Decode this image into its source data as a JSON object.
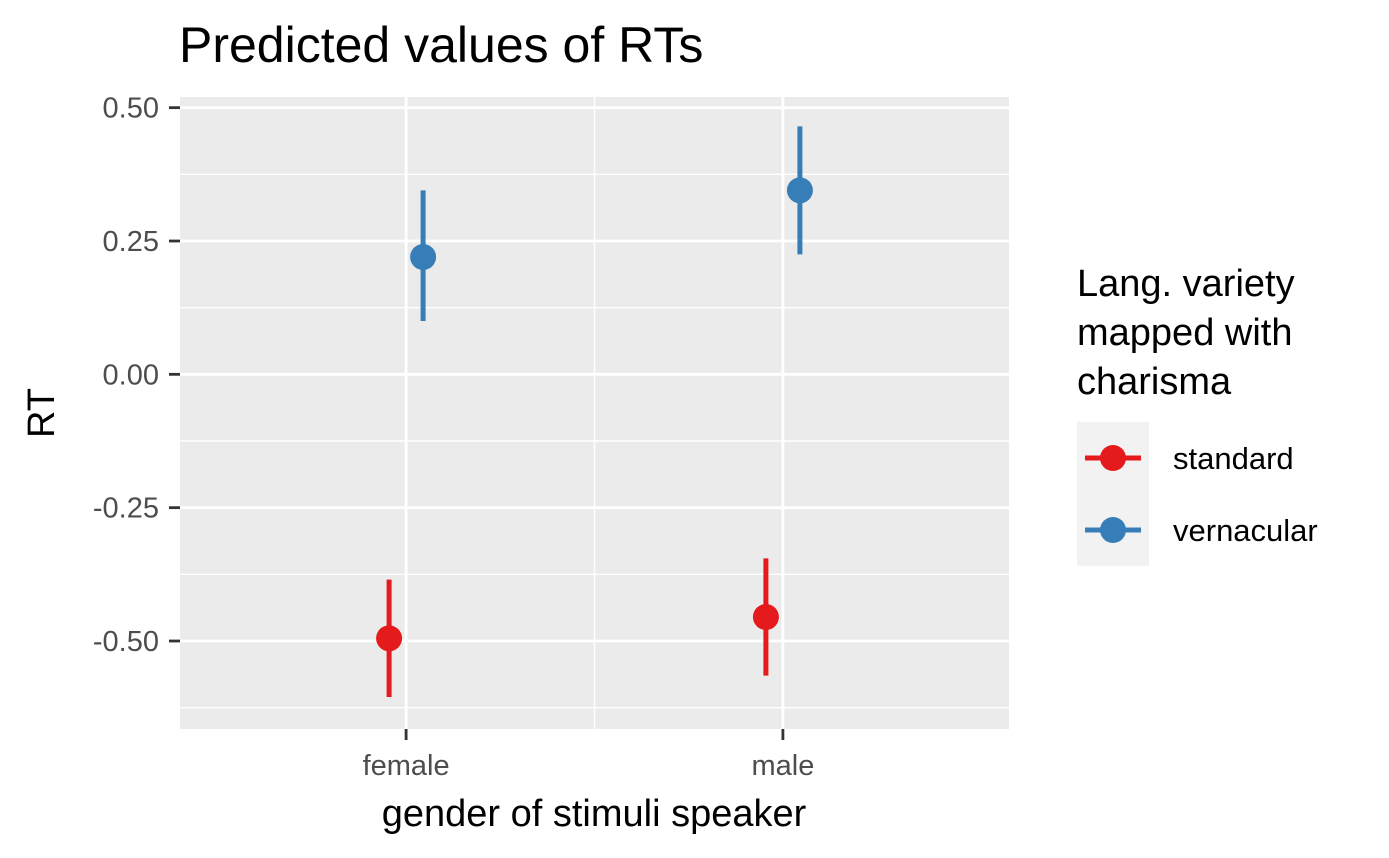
{
  "chart_data": {
    "type": "scatter",
    "title": "Predicted values of RTs",
    "xlabel": "gender of stimuli speaker",
    "ylabel": "RT",
    "categories": [
      "female",
      "male"
    ],
    "ylim": [
      -0.665,
      0.52
    ],
    "y_ticks": [
      0.5,
      0.25,
      0.0,
      -0.25,
      -0.5
    ],
    "y_tick_labels": [
      "0.50",
      "0.25",
      "0.00",
      "-0.25",
      "-0.50"
    ],
    "grid": true,
    "legend": {
      "title_lines": [
        "Lang. variety",
        "mapped with",
        "charisma"
      ],
      "placement": "right"
    },
    "series": [
      {
        "name": "standard",
        "color": "#E41A1C",
        "values": [
          -0.495,
          -0.455
        ],
        "ci_low": [
          -0.605,
          -0.565
        ],
        "ci_high": [
          -0.385,
          -0.345
        ]
      },
      {
        "name": "vernacular",
        "color": "#377EB8",
        "values": [
          0.22,
          0.345
        ],
        "ci_low": [
          0.1,
          0.225
        ],
        "ci_high": [
          0.345,
          0.465
        ]
      }
    ]
  },
  "colors": {
    "panel_background": "#EBEBEB",
    "grid": "#FFFFFF",
    "legend_key_background": "#F2F2F2"
  }
}
